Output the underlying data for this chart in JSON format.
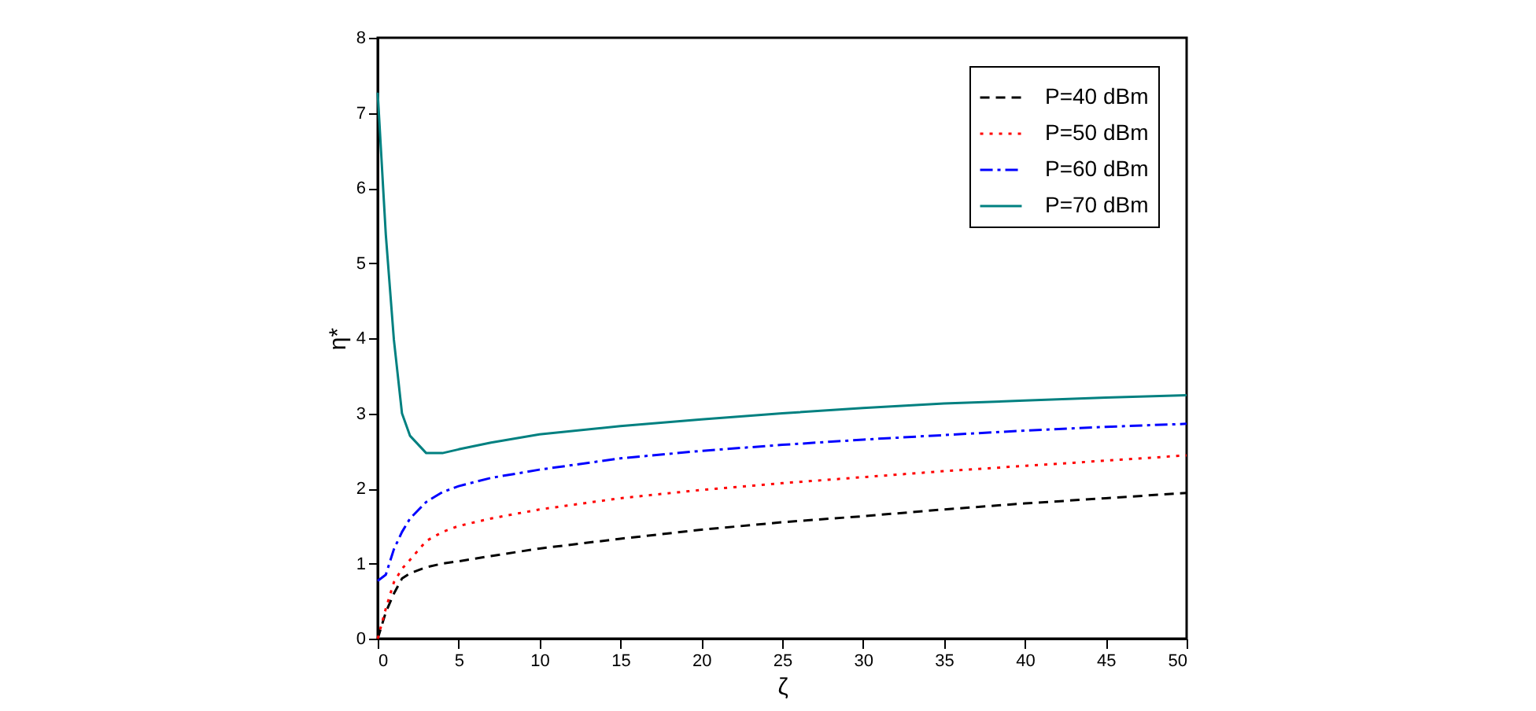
{
  "chart_data": {
    "type": "line",
    "xlabel": "ζ",
    "ylabel": "η*",
    "xlim": [
      0,
      50
    ],
    "ylim": [
      0,
      8
    ],
    "xticks": [
      0,
      5,
      10,
      15,
      20,
      25,
      30,
      35,
      40,
      45,
      50
    ],
    "yticks": [
      0,
      1,
      2,
      3,
      4,
      5,
      6,
      7,
      8
    ],
    "grid": false,
    "legend": "top right",
    "marker": "none",
    "x": [
      0,
      0.5,
      1,
      1.5,
      2,
      3,
      4,
      5,
      7,
      10,
      15,
      20,
      25,
      30,
      35,
      40,
      45,
      50
    ],
    "series": [
      {
        "name": "P=40 dBm",
        "color": "#000000",
        "line_style": "dashed",
        "values": [
          0,
          0.35,
          0.6,
          0.8,
          0.87,
          0.95,
          1.0,
          1.03,
          1.1,
          1.2,
          1.33,
          1.45,
          1.55,
          1.63,
          1.72,
          1.8,
          1.87,
          1.94
        ]
      },
      {
        "name": "P=50 dBm",
        "color": "#ff0000",
        "line_style": "dotted",
        "values": [
          0,
          0.4,
          0.75,
          0.93,
          1.05,
          1.3,
          1.42,
          1.5,
          1.6,
          1.72,
          1.87,
          1.98,
          2.07,
          2.15,
          2.23,
          2.3,
          2.37,
          2.44
        ]
      },
      {
        "name": "P=60 dBm",
        "color": "#0000ff",
        "line_style": "dashdot",
        "values": [
          0.77,
          0.85,
          1.19,
          1.42,
          1.6,
          1.82,
          1.95,
          2.03,
          2.14,
          2.25,
          2.4,
          2.5,
          2.58,
          2.65,
          2.71,
          2.77,
          2.82,
          2.86
        ]
      },
      {
        "name": "P=70 dBm",
        "color": "#008080",
        "line_style": "solid",
        "values": [
          7.27,
          5.38,
          3.98,
          3.0,
          2.7,
          2.47,
          2.47,
          2.52,
          2.61,
          2.72,
          2.83,
          2.92,
          3.0,
          3.07,
          3.13,
          3.17,
          3.21,
          3.24
        ]
      }
    ]
  }
}
